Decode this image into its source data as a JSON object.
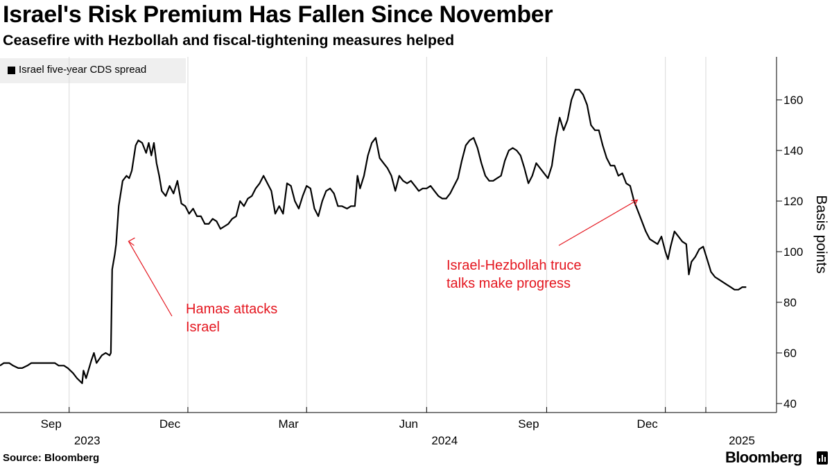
{
  "header": {
    "title": "Israel's Risk Premium Has Fallen Since November",
    "subtitle": "Ceasefire with Hezbollah and fiscal-tightening measures helped"
  },
  "legend": {
    "label": "Israel five-year CDS spread",
    "color": "#000000"
  },
  "footer": {
    "source": "Source: Bloomberg",
    "brand": "Bloomberg"
  },
  "colors": {
    "series": "#000000",
    "annotation": "#e4161f",
    "grid": "#d9d9d9",
    "axis": "#000000"
  },
  "chart_data": {
    "type": "line",
    "title": "Israel's Risk Premium Has Fallen Since November",
    "subtitle": "Ceasefire with Hezbollah and fiscal-tightening measures helped",
    "xlabel": "",
    "ylabel": "Basis points",
    "ylim": [
      35,
      176
    ],
    "y_ticks": [
      40,
      60,
      80,
      100,
      120,
      140,
      160
    ],
    "xlim": [
      "2023-07-10",
      "2025-02-28"
    ],
    "x_ticks": [
      {
        "date": "2023-09-01",
        "label": "Sep",
        "year": "2023"
      },
      {
        "date": "2023-12-01",
        "label": "Dec",
        "year": ""
      },
      {
        "date": "2024-03-01",
        "label": "Mar",
        "year": ""
      },
      {
        "date": "2024-06-01",
        "label": "Jun",
        "year": "2024"
      },
      {
        "date": "2024-09-01",
        "label": "Sep",
        "year": ""
      },
      {
        "date": "2024-12-01",
        "label": "Dec",
        "year": ""
      },
      {
        "date": "2025-01-01",
        "label": "",
        "year": "2025"
      }
    ],
    "grid": "vertical",
    "legend": "top-left",
    "series": [
      {
        "name": "Israel five-year CDS spread",
        "points": [
          [
            "2023-07-10",
            55
          ],
          [
            "2023-07-13",
            56
          ],
          [
            "2023-07-17",
            56
          ],
          [
            "2023-07-20",
            55
          ],
          [
            "2023-07-24",
            54
          ],
          [
            "2023-07-27",
            54
          ],
          [
            "2023-07-31",
            55
          ],
          [
            "2023-08-03",
            56
          ],
          [
            "2023-08-07",
            56
          ],
          [
            "2023-08-10",
            56
          ],
          [
            "2023-08-14",
            56
          ],
          [
            "2023-08-17",
            56
          ],
          [
            "2023-08-21",
            56
          ],
          [
            "2023-08-24",
            55
          ],
          [
            "2023-08-28",
            55
          ],
          [
            "2023-08-31",
            54
          ],
          [
            "2023-09-04",
            52
          ],
          [
            "2023-09-07",
            50
          ],
          [
            "2023-09-11",
            48
          ],
          [
            "2023-09-12",
            53
          ],
          [
            "2023-09-14",
            50
          ],
          [
            "2023-09-18",
            57
          ],
          [
            "2023-09-20",
            60
          ],
          [
            "2023-09-22",
            56
          ],
          [
            "2023-09-26",
            59
          ],
          [
            "2023-09-29",
            60
          ],
          [
            "2023-10-02",
            59
          ],
          [
            "2023-10-03",
            60
          ],
          [
            "2023-10-04",
            93
          ],
          [
            "2023-10-06",
            99
          ],
          [
            "2023-10-07",
            103
          ],
          [
            "2023-10-09",
            118
          ],
          [
            "2023-10-12",
            128
          ],
          [
            "2023-10-15",
            130
          ],
          [
            "2023-10-17",
            129
          ],
          [
            "2023-10-19",
            132
          ],
          [
            "2023-10-22",
            142
          ],
          [
            "2023-10-24",
            144
          ],
          [
            "2023-10-27",
            143
          ],
          [
            "2023-10-30",
            139
          ],
          [
            "2023-11-01",
            143
          ],
          [
            "2023-11-03",
            138
          ],
          [
            "2023-11-05",
            143
          ],
          [
            "2023-11-07",
            135
          ],
          [
            "2023-11-09",
            130
          ],
          [
            "2023-11-11",
            124
          ],
          [
            "2023-11-14",
            122
          ],
          [
            "2023-11-17",
            126
          ],
          [
            "2023-11-20",
            123
          ],
          [
            "2023-11-23",
            128
          ],
          [
            "2023-11-26",
            119
          ],
          [
            "2023-11-29",
            118
          ],
          [
            "2023-12-02",
            115
          ],
          [
            "2023-12-05",
            117
          ],
          [
            "2023-12-08",
            114
          ],
          [
            "2023-12-11",
            114
          ],
          [
            "2023-12-14",
            111
          ],
          [
            "2023-12-17",
            111
          ],
          [
            "2023-12-20",
            113
          ],
          [
            "2023-12-23",
            112
          ],
          [
            "2023-12-26",
            109
          ],
          [
            "2023-12-29",
            110
          ],
          [
            "2024-01-01",
            111
          ],
          [
            "2024-01-04",
            113
          ],
          [
            "2024-01-07",
            114
          ],
          [
            "2024-01-10",
            120
          ],
          [
            "2024-01-13",
            118
          ],
          [
            "2024-01-16",
            121
          ],
          [
            "2024-01-19",
            122
          ],
          [
            "2024-01-22",
            125
          ],
          [
            "2024-01-25",
            127
          ],
          [
            "2024-01-28",
            130
          ],
          [
            "2024-01-31",
            127
          ],
          [
            "2024-02-03",
            124
          ],
          [
            "2024-02-06",
            115
          ],
          [
            "2024-02-09",
            118
          ],
          [
            "2024-02-12",
            115
          ],
          [
            "2024-02-15",
            127
          ],
          [
            "2024-02-18",
            126
          ],
          [
            "2024-02-21",
            120
          ],
          [
            "2024-02-24",
            117
          ],
          [
            "2024-02-27",
            122
          ],
          [
            "2024-03-01",
            126
          ],
          [
            "2024-03-04",
            125
          ],
          [
            "2024-03-07",
            117
          ],
          [
            "2024-03-10",
            114
          ],
          [
            "2024-03-13",
            120
          ],
          [
            "2024-03-16",
            124
          ],
          [
            "2024-03-19",
            125
          ],
          [
            "2024-03-22",
            123
          ],
          [
            "2024-03-25",
            118
          ],
          [
            "2024-03-28",
            118
          ],
          [
            "2024-04-01",
            117
          ],
          [
            "2024-04-04",
            118
          ],
          [
            "2024-04-07",
            118
          ],
          [
            "2024-04-09",
            130
          ],
          [
            "2024-04-11",
            125
          ],
          [
            "2024-04-14",
            130
          ],
          [
            "2024-04-17",
            138
          ],
          [
            "2024-04-20",
            143
          ],
          [
            "2024-04-23",
            145
          ],
          [
            "2024-04-26",
            137
          ],
          [
            "2024-04-29",
            135
          ],
          [
            "2024-05-02",
            133
          ],
          [
            "2024-05-05",
            130
          ],
          [
            "2024-05-08",
            124
          ],
          [
            "2024-05-11",
            130
          ],
          [
            "2024-05-14",
            128
          ],
          [
            "2024-05-17",
            127
          ],
          [
            "2024-05-20",
            128
          ],
          [
            "2024-05-23",
            126
          ],
          [
            "2024-05-26",
            124
          ],
          [
            "2024-05-29",
            125
          ],
          [
            "2024-06-01",
            125
          ],
          [
            "2024-06-04",
            126
          ],
          [
            "2024-06-07",
            124
          ],
          [
            "2024-06-10",
            122
          ],
          [
            "2024-06-13",
            121
          ],
          [
            "2024-06-16",
            121
          ],
          [
            "2024-06-19",
            123
          ],
          [
            "2024-06-22",
            126
          ],
          [
            "2024-06-25",
            129
          ],
          [
            "2024-06-28",
            136
          ],
          [
            "2024-07-01",
            142
          ],
          [
            "2024-07-04",
            144
          ],
          [
            "2024-07-07",
            145
          ],
          [
            "2024-07-10",
            141
          ],
          [
            "2024-07-13",
            135
          ],
          [
            "2024-07-16",
            130
          ],
          [
            "2024-07-19",
            128
          ],
          [
            "2024-07-22",
            128
          ],
          [
            "2024-07-25",
            129
          ],
          [
            "2024-07-28",
            130
          ],
          [
            "2024-07-31",
            136
          ],
          [
            "2024-08-03",
            140
          ],
          [
            "2024-08-06",
            141
          ],
          [
            "2024-08-09",
            140
          ],
          [
            "2024-08-12",
            138
          ],
          [
            "2024-08-15",
            133
          ],
          [
            "2024-08-18",
            127
          ],
          [
            "2024-08-21",
            130
          ],
          [
            "2024-08-24",
            135
          ],
          [
            "2024-08-27",
            133
          ],
          [
            "2024-08-30",
            131
          ],
          [
            "2024-09-02",
            129
          ],
          [
            "2024-09-05",
            134
          ],
          [
            "2024-09-08",
            145
          ],
          [
            "2024-09-11",
            153
          ],
          [
            "2024-09-14",
            148
          ],
          [
            "2024-09-17",
            152
          ],
          [
            "2024-09-20",
            160
          ],
          [
            "2024-09-23",
            164
          ],
          [
            "2024-09-26",
            164
          ],
          [
            "2024-09-29",
            162
          ],
          [
            "2024-10-02",
            158
          ],
          [
            "2024-10-05",
            150
          ],
          [
            "2024-10-08",
            148
          ],
          [
            "2024-10-11",
            148
          ],
          [
            "2024-10-14",
            142
          ],
          [
            "2024-10-17",
            137
          ],
          [
            "2024-10-20",
            134
          ],
          [
            "2024-10-23",
            134
          ],
          [
            "2024-10-26",
            130
          ],
          [
            "2024-10-29",
            131
          ],
          [
            "2024-11-01",
            127
          ],
          [
            "2024-11-04",
            126
          ],
          [
            "2024-11-07",
            120
          ],
          [
            "2024-11-10",
            116
          ],
          [
            "2024-11-13",
            112
          ],
          [
            "2024-11-16",
            108
          ],
          [
            "2024-11-19",
            105
          ],
          [
            "2024-11-22",
            104
          ],
          [
            "2024-11-25",
            103
          ],
          [
            "2024-11-28",
            106
          ],
          [
            "2024-12-01",
            100
          ],
          [
            "2024-12-03",
            97
          ],
          [
            "2024-12-05",
            102
          ],
          [
            "2024-12-08",
            108
          ],
          [
            "2024-12-11",
            106
          ],
          [
            "2024-12-14",
            104
          ],
          [
            "2024-12-17",
            103
          ],
          [
            "2024-12-19",
            91
          ],
          [
            "2024-12-21",
            96
          ],
          [
            "2024-12-24",
            98
          ],
          [
            "2024-12-27",
            101
          ],
          [
            "2024-12-30",
            102
          ],
          [
            "2025-01-02",
            97
          ],
          [
            "2025-01-05",
            92
          ],
          [
            "2025-01-08",
            90
          ],
          [
            "2025-01-11",
            89
          ],
          [
            "2025-01-14",
            88
          ],
          [
            "2025-01-17",
            87
          ],
          [
            "2025-01-20",
            86
          ],
          [
            "2025-01-23",
            85
          ],
          [
            "2025-01-26",
            85
          ],
          [
            "2025-01-29",
            86
          ],
          [
            "2025-02-01",
            86
          ]
        ]
      }
    ],
    "annotations": [
      {
        "text_lines": [
          "Hamas attacks",
          "Israel"
        ],
        "date": "2023-10-07",
        "value": 103
      },
      {
        "text_lines": [
          "Israel-Hezbollah truce",
          "talks make progress"
        ],
        "date": "2024-10-30",
        "value": 121
      }
    ]
  }
}
